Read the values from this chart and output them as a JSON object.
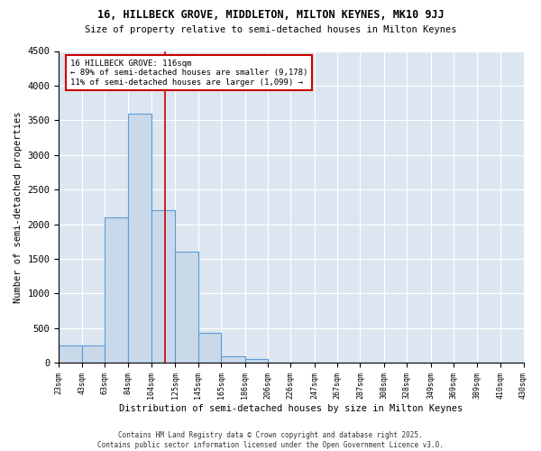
{
  "title_line1": "16, HILLBECK GROVE, MIDDLETON, MILTON KEYNES, MK10 9JJ",
  "title_line2": "Size of property relative to semi-detached houses in Milton Keynes",
  "xlabel": "Distribution of semi-detached houses by size in Milton Keynes",
  "ylabel": "Number of semi-detached properties",
  "footnote": "Contains HM Land Registry data © Crown copyright and database right 2025.\nContains public sector information licensed under the Open Government Licence v3.0.",
  "bin_labels": [
    "23sqm",
    "43sqm",
    "63sqm",
    "84sqm",
    "104sqm",
    "125sqm",
    "145sqm",
    "165sqm",
    "186sqm",
    "206sqm",
    "226sqm",
    "247sqm",
    "267sqm",
    "287sqm",
    "308sqm",
    "328sqm",
    "349sqm",
    "369sqm",
    "389sqm",
    "410sqm",
    "430sqm"
  ],
  "bin_edges": [
    23,
    43,
    63,
    84,
    104,
    125,
    145,
    165,
    186,
    206,
    226,
    247,
    267,
    287,
    308,
    328,
    349,
    369,
    389,
    410,
    430
  ],
  "bar_heights": [
    250,
    250,
    2100,
    3600,
    2200,
    1600,
    430,
    100,
    60,
    0,
    0,
    0,
    0,
    0,
    0,
    0,
    0,
    0,
    0,
    0
  ],
  "bar_color": "#c9d9ea",
  "bar_edge_color": "#5b9bd5",
  "background_color": "#dce6f0",
  "property_size": 116,
  "property_line_color": "#cc0000",
  "annotation_text": "16 HILLBECK GROVE: 116sqm\n← 89% of semi-detached houses are smaller (9,178)\n11% of semi-detached houses are larger (1,099) →",
  "annotation_box_color": "#cc0000",
  "ylim": [
    0,
    4500
  ],
  "yticks": [
    0,
    500,
    1000,
    1500,
    2000,
    2500,
    3000,
    3500,
    4000,
    4500
  ]
}
